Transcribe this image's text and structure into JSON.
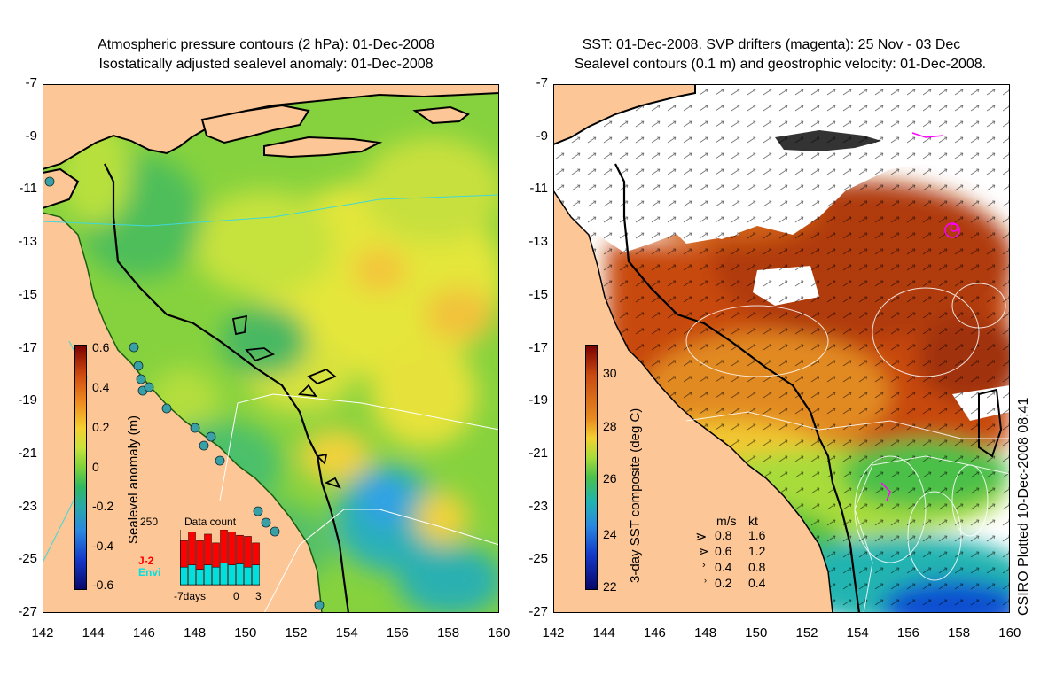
{
  "left_title": {
    "line1": "Atmospheric pressure contours (2 hPa): 01-Dec-2008",
    "line2": "Isostatically adjusted sealevel anomaly: 01-Dec-2008"
  },
  "right_title": {
    "line1": "SST: 01-Dec-2008. SVP drifters (magenta): 25 Nov - 03 Dec",
    "line2": "Sealevel contours (0.1 m) and geostrophic velocity: 01-Dec-2008."
  },
  "y_ticks": [
    "-7",
    "-9",
    "-11",
    "-13",
    "-15",
    "-17",
    "-19",
    "-21",
    "-23",
    "-25",
    "-27"
  ],
  "x_ticks": [
    "142",
    "144",
    "146",
    "148",
    "150",
    "152",
    "154",
    "156",
    "158",
    "160"
  ],
  "left_colorbar": {
    "label": "Sealevel anomaly (m)",
    "ticks": [
      "0.6",
      "0.4",
      "0.2",
      "0",
      "-0.2",
      "-0.4",
      "-0.6"
    ]
  },
  "right_colorbar": {
    "label": "3-day SST composite (deg C)",
    "ticks": [
      "30",
      "28",
      "26",
      "24",
      "22"
    ]
  },
  "inset": {
    "title": "Data count",
    "ymax": "250",
    "series_a": "J-2",
    "series_b": "Envi",
    "x_start": "-7days",
    "x_mid": "0",
    "x_end": "3",
    "color_a": "#ff0000",
    "color_b": "#00e0e0",
    "counts_a": [
      120,
      150,
      130,
      140,
      110,
      150,
      150,
      130,
      140,
      100
    ],
    "counts_b": [
      80,
      90,
      70,
      90,
      80,
      100,
      90,
      95,
      80,
      90
    ]
  },
  "velocity_legend": {
    "header_ms": "m/s",
    "header_kt": "kt",
    "rows": [
      {
        "ms": "0.8",
        "kt": "1.6"
      },
      {
        "ms": "0.6",
        "kt": "1.2"
      },
      {
        "ms": "0.4",
        "kt": "0.8"
      },
      {
        "ms": "0.2",
        "kt": "0.4"
      }
    ]
  },
  "credit": "CSIRO Plotted 10-Dec-2008 08:41",
  "colors": {
    "land": "#fcc696",
    "ocean_green": "#7ed23a",
    "ocean_yellow": "#e0e83a",
    "warm_sst": "#c84a10",
    "drifter": "#ff00ff"
  }
}
